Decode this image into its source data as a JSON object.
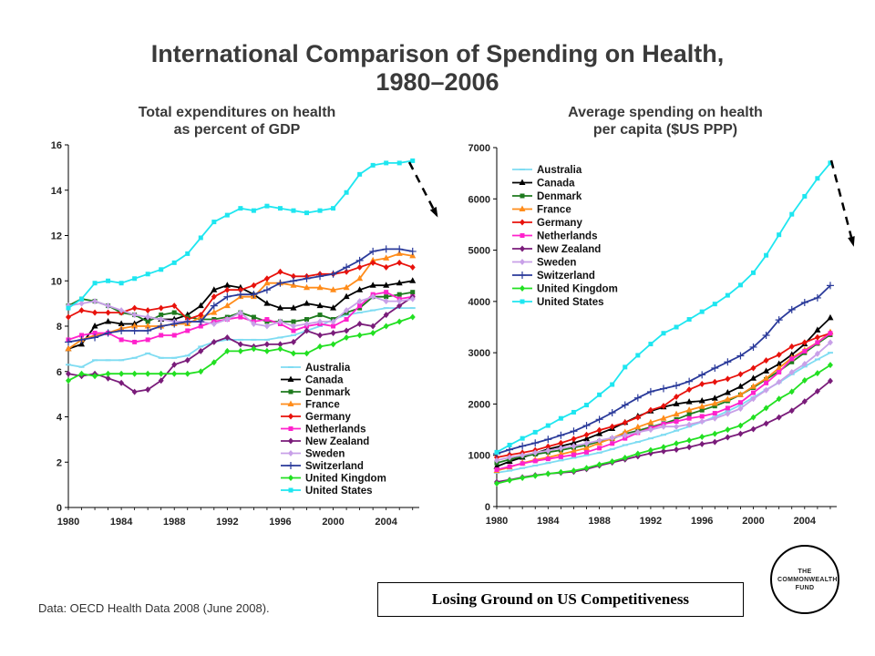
{
  "title_line1": "International Comparison of Spending on Health,",
  "title_line2": "1980–2006",
  "source": "Data: OECD Health Data 2008 (June 2008).",
  "tagline": "Losing Ground on US Competitiveness",
  "logo_text": "THE COMMONWEALTH FUND",
  "colors": {
    "Australia": "#7fdcf2",
    "Canada": "#000000",
    "Denmark": "#1e7a1e",
    "France": "#ff8c1a",
    "Germany": "#e8120c",
    "Netherlands": "#ff22cc",
    "New Zealand": "#7a1c7a",
    "Sweden": "#c8a0e8",
    "Switzerland": "#2a3a9a",
    "United Kingdom": "#22e022",
    "United States": "#1ee6f0"
  },
  "chart_data": [
    {
      "type": "line",
      "title_line1": "Total expenditures on health",
      "title_line2": "as percent of GDP",
      "ylim": [
        0,
        16
      ],
      "yticks": [
        "0",
        "2",
        "4",
        "6",
        "8",
        "10",
        "12",
        "14",
        "16"
      ],
      "xticks": [
        "1980",
        "1984",
        "1988",
        "1992",
        "1996",
        "2000",
        "2004"
      ],
      "legend": "lower-right",
      "x": [
        1980,
        1981,
        1982,
        1983,
        1984,
        1985,
        1986,
        1987,
        1988,
        1989,
        1990,
        1991,
        1992,
        1993,
        1994,
        1995,
        1996,
        1997,
        1998,
        1999,
        2000,
        2001,
        2002,
        2003,
        2004,
        2005,
        2006
      ],
      "series": [
        {
          "name": "Australia",
          "values": [
            6.3,
            6.2,
            6.5,
            6.5,
            6.5,
            6.6,
            6.8,
            6.6,
            6.6,
            6.7,
            7.1,
            7.3,
            7.4,
            7.4,
            7.4,
            7.4,
            7.5,
            7.6,
            7.8,
            8.0,
            8.3,
            8.5,
            8.6,
            8.7,
            8.8,
            8.8,
            8.8
          ]
        },
        {
          "name": "Canada",
          "values": [
            7.0,
            7.2,
            8.0,
            8.2,
            8.1,
            8.1,
            8.4,
            8.3,
            8.3,
            8.5,
            8.9,
            9.6,
            9.8,
            9.7,
            9.4,
            9.0,
            8.8,
            8.8,
            9.0,
            8.9,
            8.8,
            9.3,
            9.6,
            9.8,
            9.8,
            9.9,
            10.0
          ]
        },
        {
          "name": "Denmark",
          "values": [
            8.9,
            9.2,
            9.1,
            8.9,
            8.6,
            8.5,
            8.2,
            8.5,
            8.6,
            8.4,
            8.3,
            8.3,
            8.4,
            8.6,
            8.4,
            8.2,
            8.2,
            8.2,
            8.3,
            8.5,
            8.3,
            8.6,
            8.8,
            9.3,
            9.3,
            9.4,
            9.5
          ]
        },
        {
          "name": "France",
          "values": [
            7.0,
            7.4,
            7.6,
            7.7,
            7.9,
            8.0,
            8.0,
            8.0,
            8.1,
            8.1,
            8.4,
            8.6,
            8.9,
            9.3,
            9.3,
            9.9,
            9.9,
            9.8,
            9.7,
            9.7,
            9.6,
            9.7,
            10.1,
            10.9,
            11.0,
            11.2,
            11.1
          ]
        },
        {
          "name": "Germany",
          "values": [
            8.4,
            8.7,
            8.6,
            8.6,
            8.6,
            8.8,
            8.7,
            8.8,
            8.9,
            8.3,
            8.5,
            9.3,
            9.6,
            9.6,
            9.8,
            10.1,
            10.4,
            10.2,
            10.2,
            10.3,
            10.3,
            10.4,
            10.6,
            10.8,
            10.6,
            10.8,
            10.6
          ]
        },
        {
          "name": "Netherlands",
          "values": [
            7.4,
            7.6,
            7.7,
            7.7,
            7.4,
            7.3,
            7.4,
            7.6,
            7.6,
            7.8,
            8.0,
            8.2,
            8.3,
            8.4,
            8.2,
            8.3,
            8.1,
            7.8,
            8.0,
            8.1,
            8.0,
            8.3,
            8.9,
            9.4,
            9.5,
            9.2,
            9.3
          ]
        },
        {
          "name": "New Zealand",
          "values": [
            5.9,
            5.8,
            5.9,
            5.7,
            5.5,
            5.1,
            5.2,
            5.6,
            6.3,
            6.5,
            6.9,
            7.3,
            7.5,
            7.2,
            7.1,
            7.2,
            7.2,
            7.3,
            7.8,
            7.6,
            7.7,
            7.8,
            8.1,
            8.0,
            8.5,
            8.9,
            9.3
          ]
        },
        {
          "name": "Sweden",
          "values": [
            8.9,
            9.0,
            9.1,
            8.9,
            8.7,
            8.5,
            8.4,
            8.3,
            8.2,
            8.2,
            8.2,
            8.1,
            8.3,
            8.6,
            8.1,
            8.0,
            8.2,
            8.0,
            8.1,
            8.2,
            8.2,
            8.7,
            9.1,
            9.3,
            9.1,
            9.1,
            9.2
          ]
        },
        {
          "name": "Switzerland",
          "values": [
            7.3,
            7.4,
            7.5,
            7.7,
            7.8,
            7.8,
            7.8,
            8.0,
            8.1,
            8.2,
            8.2,
            8.9,
            9.3,
            9.4,
            9.4,
            9.6,
            9.9,
            10.0,
            10.1,
            10.2,
            10.3,
            10.6,
            10.9,
            11.3,
            11.4,
            11.4,
            11.3
          ]
        },
        {
          "name": "United Kingdom",
          "values": [
            5.6,
            5.9,
            5.8,
            5.9,
            5.9,
            5.9,
            5.9,
            5.9,
            5.9,
            5.9,
            6.0,
            6.4,
            6.9,
            6.9,
            7.0,
            6.9,
            7.0,
            6.8,
            6.8,
            7.1,
            7.2,
            7.5,
            7.6,
            7.7,
            8.0,
            8.2,
            8.4
          ]
        },
        {
          "name": "United States",
          "values": [
            8.8,
            9.2,
            9.9,
            10.0,
            9.9,
            10.1,
            10.3,
            10.5,
            10.8,
            11.2,
            11.9,
            12.6,
            12.9,
            13.2,
            13.1,
            13.3,
            13.2,
            13.1,
            13.0,
            13.1,
            13.2,
            13.9,
            14.7,
            15.1,
            15.2,
            15.2,
            15.3
          ]
        }
      ]
    },
    {
      "type": "line",
      "title_line1": "Average spending on health",
      "title_line2": "per capita ($US PPP)",
      "ylim": [
        0,
        7000
      ],
      "yticks": [
        "0",
        "1000",
        "2000",
        "3000",
        "4000",
        "5000",
        "6000",
        "7000"
      ],
      "xticks": [
        "1980",
        "1984",
        "1988",
        "1992",
        "1996",
        "2000",
        "2004"
      ],
      "legend": "upper-left",
      "x": [
        1980,
        1981,
        1982,
        1983,
        1984,
        1985,
        1986,
        1987,
        1988,
        1989,
        1990,
        1991,
        1992,
        1993,
        1994,
        1995,
        1996,
        1997,
        1998,
        1999,
        2000,
        2001,
        2002,
        2003,
        2004,
        2005,
        2006
      ],
      "series": [
        {
          "name": "Australia",
          "values": [
            660,
            700,
            750,
            800,
            850,
            900,
            950,
            1000,
            1050,
            1120,
            1200,
            1260,
            1330,
            1400,
            1480,
            1560,
            1650,
            1750,
            1860,
            1980,
            2130,
            2280,
            2420,
            2580,
            2730,
            2870,
            3000
          ]
        },
        {
          "name": "Canada",
          "values": [
            780,
            880,
            960,
            1040,
            1120,
            1180,
            1240,
            1320,
            1420,
            1520,
            1640,
            1760,
            1860,
            1940,
            2000,
            2040,
            2060,
            2110,
            2220,
            2340,
            2500,
            2640,
            2780,
            2960,
            3170,
            3440,
            3680
          ]
        },
        {
          "name": "Denmark",
          "values": [
            850,
            920,
            980,
            1020,
            1060,
            1100,
            1150,
            1200,
            1270,
            1320,
            1420,
            1480,
            1550,
            1620,
            1700,
            1800,
            1880,
            1960,
            2060,
            2180,
            2320,
            2480,
            2640,
            2820,
            3000,
            3180,
            3350
          ]
        },
        {
          "name": "France",
          "values": [
            700,
            770,
            850,
            910,
            960,
            1020,
            1080,
            1140,
            1240,
            1330,
            1450,
            1550,
            1640,
            1720,
            1800,
            1880,
            1950,
            2010,
            2090,
            2180,
            2340,
            2500,
            2700,
            2900,
            3050,
            3200,
            3400
          ]
        },
        {
          "name": "Germany",
          "values": [
            960,
            1010,
            1050,
            1100,
            1170,
            1240,
            1320,
            1400,
            1490,
            1560,
            1640,
            1740,
            1880,
            1960,
            2140,
            2280,
            2390,
            2430,
            2490,
            2580,
            2700,
            2850,
            2960,
            3120,
            3200,
            3300,
            3380
          ]
        },
        {
          "name": "Netherlands",
          "values": [
            720,
            780,
            840,
            890,
            930,
            970,
            1010,
            1060,
            1140,
            1230,
            1330,
            1440,
            1530,
            1610,
            1660,
            1720,
            1760,
            1820,
            1920,
            2030,
            2220,
            2410,
            2620,
            2880,
            3030,
            3200,
            3380
          ]
        },
        {
          "name": "New Zealand",
          "values": [
            480,
            520,
            570,
            610,
            640,
            660,
            680,
            730,
            800,
            860,
            920,
            980,
            1040,
            1080,
            1110,
            1160,
            1220,
            1260,
            1350,
            1420,
            1510,
            1620,
            1740,
            1870,
            2050,
            2250,
            2450
          ]
        },
        {
          "name": "Sweden",
          "values": [
            900,
            960,
            1000,
            1050,
            1090,
            1140,
            1180,
            1230,
            1290,
            1340,
            1390,
            1450,
            1500,
            1560,
            1560,
            1600,
            1660,
            1720,
            1810,
            1910,
            2100,
            2270,
            2430,
            2620,
            2780,
            2980,
            3200
          ]
        },
        {
          "name": "Switzerland",
          "values": [
            1030,
            1110,
            1180,
            1240,
            1310,
            1390,
            1470,
            1580,
            1700,
            1830,
            1980,
            2120,
            2240,
            2300,
            2360,
            2440,
            2570,
            2700,
            2820,
            2940,
            3110,
            3340,
            3640,
            3840,
            3980,
            4070,
            4310
          ]
        },
        {
          "name": "United Kingdom",
          "values": [
            450,
            510,
            560,
            600,
            640,
            670,
            700,
            750,
            820,
            880,
            950,
            1030,
            1100,
            1160,
            1230,
            1290,
            1360,
            1420,
            1500,
            1580,
            1740,
            1920,
            2100,
            2240,
            2460,
            2600,
            2760
          ]
        },
        {
          "name": "United States",
          "values": [
            1060,
            1200,
            1330,
            1450,
            1580,
            1720,
            1840,
            1980,
            2180,
            2380,
            2720,
            2950,
            3170,
            3380,
            3500,
            3650,
            3800,
            3950,
            4120,
            4320,
            4560,
            4900,
            5300,
            5700,
            6050,
            6400,
            6700
          ]
        }
      ]
    }
  ]
}
